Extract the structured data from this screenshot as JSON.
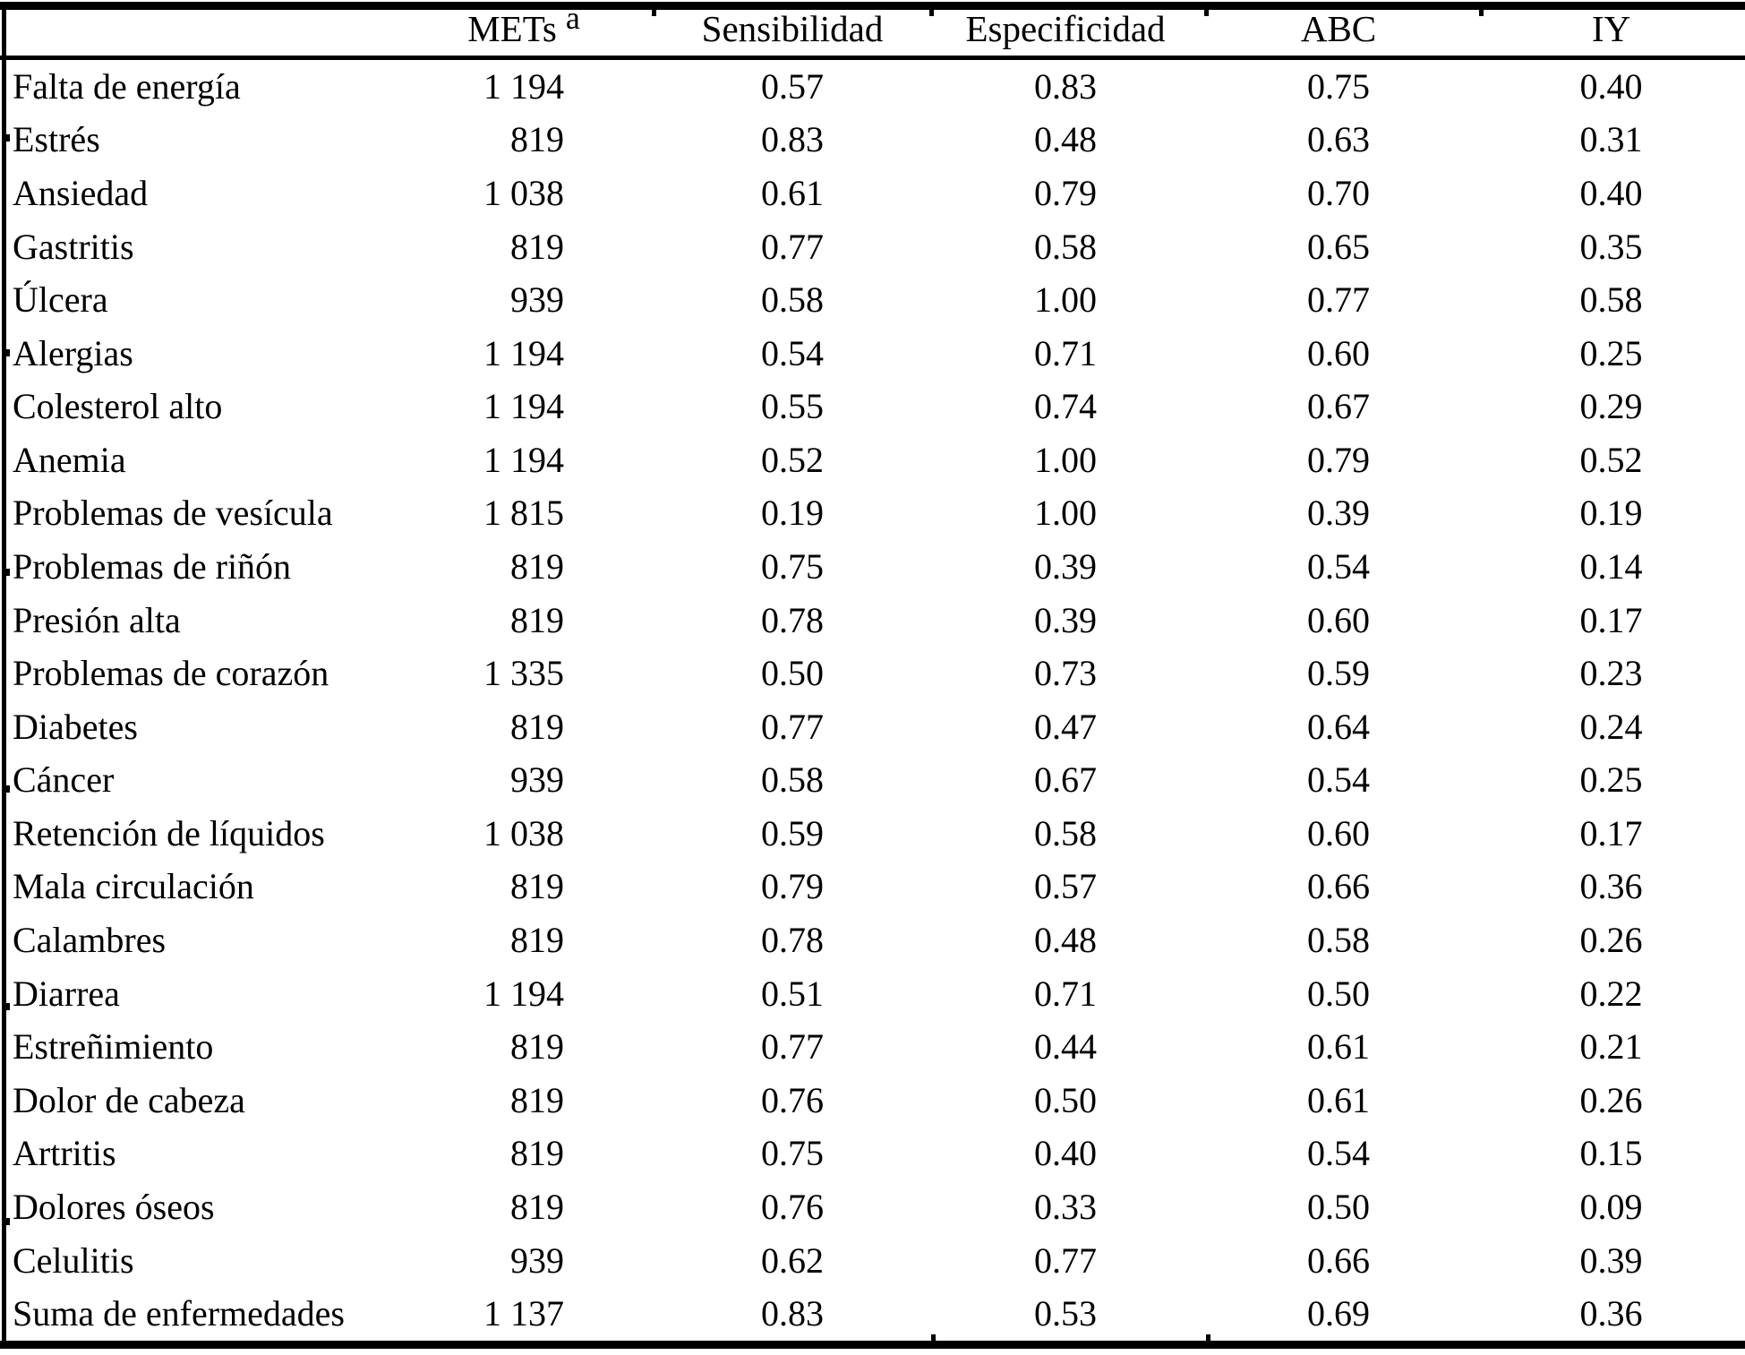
{
  "table": {
    "columns": {
      "label": "",
      "mets_text": "METs",
      "mets_sup": "a",
      "sens": "Sensibilidad",
      "espec": "Especificidad",
      "abc": "ABC",
      "iy": "IY"
    },
    "rows": [
      {
        "label": "Falta de energía",
        "mets": "1 194",
        "sens": "0.57",
        "espec": "0.83",
        "abc": "0.75",
        "iy": "0.40"
      },
      {
        "label": "Estrés",
        "mets": "819",
        "sens": "0.83",
        "espec": "0.48",
        "abc": "0.63",
        "iy": "0.31"
      },
      {
        "label": "Ansiedad",
        "mets": "1 038",
        "sens": "0.61",
        "espec": "0.79",
        "abc": "0.70",
        "iy": "0.40"
      },
      {
        "label": "Gastritis",
        "mets": "819",
        "sens": "0.77",
        "espec": "0.58",
        "abc": "0.65",
        "iy": "0.35"
      },
      {
        "label": "Úlcera",
        "mets": "939",
        "sens": "0.58",
        "espec": "1.00",
        "abc": "0.77",
        "iy": "0.58"
      },
      {
        "label": "Alergias",
        "mets": "1 194",
        "sens": "0.54",
        "espec": "0.71",
        "abc": "0.60",
        "iy": "0.25"
      },
      {
        "label": "Colesterol alto",
        "mets": "1 194",
        "sens": "0.55",
        "espec": "0.74",
        "abc": "0.67",
        "iy": "0.29"
      },
      {
        "label": "Anemia",
        "mets": "1 194",
        "sens": "0.52",
        "espec": "1.00",
        "abc": "0.79",
        "iy": "0.52"
      },
      {
        "label": "Problemas de vesícula",
        "mets": "1 815",
        "sens": "0.19",
        "espec": "1.00",
        "abc": "0.39",
        "iy": "0.19"
      },
      {
        "label": "Problemas de riñón",
        "mets": "819",
        "sens": "0.75",
        "espec": "0.39",
        "abc": "0.54",
        "iy": "0.14"
      },
      {
        "label": "Presión alta",
        "mets": "819",
        "sens": "0.78",
        "espec": "0.39",
        "abc": "0.60",
        "iy": "0.17"
      },
      {
        "label": "Problemas de corazón",
        "mets": "1 335",
        "sens": "0.50",
        "espec": "0.73",
        "abc": "0.59",
        "iy": "0.23"
      },
      {
        "label": "Diabetes",
        "mets": "819",
        "sens": "0.77",
        "espec": "0.47",
        "abc": "0.64",
        "iy": "0.24"
      },
      {
        "label": "Cáncer",
        "mets": "939",
        "sens": "0.58",
        "espec": "0.67",
        "abc": "0.54",
        "iy": "0.25"
      },
      {
        "label": "Retención de líquidos",
        "mets": "1 038",
        "sens": "0.59",
        "espec": "0.58",
        "abc": "0.60",
        "iy": "0.17"
      },
      {
        "label": "Mala circulación",
        "mets": "819",
        "sens": "0.79",
        "espec": "0.57",
        "abc": "0.66",
        "iy": "0.36"
      },
      {
        "label": "Calambres",
        "mets": "819",
        "sens": "0.78",
        "espec": "0.48",
        "abc": "0.58",
        "iy": "0.26"
      },
      {
        "label": "Diarrea",
        "mets": "1 194",
        "sens": "0.51",
        "espec": "0.71",
        "abc": "0.50",
        "iy": "0.22"
      },
      {
        "label": "Estreñimiento",
        "mets": "819",
        "sens": "0.77",
        "espec": "0.44",
        "abc": "0.61",
        "iy": "0.21"
      },
      {
        "label": "Dolor de cabeza",
        "mets": "819",
        "sens": "0.76",
        "espec": "0.50",
        "abc": "0.61",
        "iy": "0.26"
      },
      {
        "label": "Artritis",
        "mets": "819",
        "sens": "0.75",
        "espec": "0.40",
        "abc": "0.54",
        "iy": "0.15"
      },
      {
        "label": "Dolores óseos",
        "mets": "819",
        "sens": "0.76",
        "espec": "0.33",
        "abc": "0.50",
        "iy": "0.09"
      },
      {
        "label": "Celulitis",
        "mets": "939",
        "sens": "0.62",
        "espec": "0.77",
        "abc": "0.66",
        "iy": "0.39"
      },
      {
        "label": "Suma de enfermedades",
        "mets": "1 137",
        "sens": "0.83",
        "espec": "0.53",
        "abc": "0.69",
        "iy": "0.36"
      }
    ]
  },
  "colors": {
    "text": "#000000",
    "background": "#ffffff",
    "rule": "#000000"
  }
}
